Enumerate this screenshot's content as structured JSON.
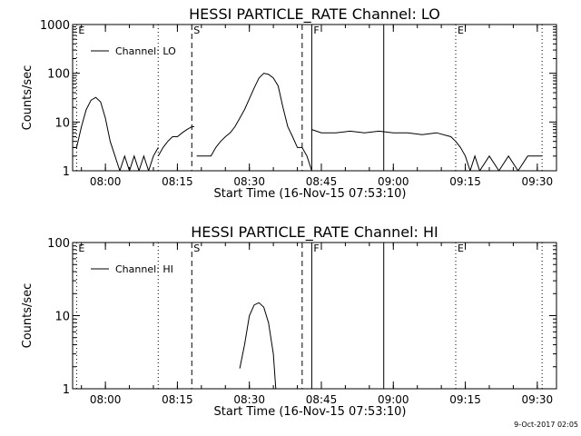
{
  "footer": {
    "timestamp": "9-Oct-2017 02:05"
  },
  "chart_data": [
    {
      "type": "line",
      "title": "HESSI PARTICLE_RATE Channel: LO",
      "xlabel": "Start Time (16-Nov-15 07:53:10)",
      "ylabel": "Counts/sec",
      "y_scale": "log",
      "ylim": [
        1,
        1000
      ],
      "y_ticks": [
        {
          "value": 1,
          "label": "1"
        },
        {
          "value": 10,
          "label": "10"
        },
        {
          "value": 100,
          "label": "100"
        },
        {
          "value": 1000,
          "label": "1000"
        }
      ],
      "xlim": [
        "07:53:10",
        "09:34:00"
      ],
      "x_ticks": [
        {
          "time": "08:00",
          "label": "08:00"
        },
        {
          "time": "08:15",
          "label": "08:15"
        },
        {
          "time": "08:30",
          "label": "08:30"
        },
        {
          "time": "08:45",
          "label": "08:45"
        },
        {
          "time": "09:00",
          "label": "09:00"
        },
        {
          "time": "09:15",
          "label": "09:15"
        },
        {
          "time": "09:30",
          "label": "09:30"
        }
      ],
      "legend": {
        "position": "top-left",
        "entries": [
          "Channel: LO"
        ]
      },
      "markers": [
        {
          "time": "07:54:00",
          "style": "dotted",
          "label": "E"
        },
        {
          "time": "08:11:00",
          "style": "dotted",
          "label": ""
        },
        {
          "time": "08:18:00",
          "style": "dashed",
          "label": "S"
        },
        {
          "time": "08:41:00",
          "style": "dashed",
          "label": ""
        },
        {
          "time": "08:43:00",
          "style": "solid",
          "label": "F"
        },
        {
          "time": "08:58:00",
          "style": "solid",
          "label": ""
        },
        {
          "time": "09:13:00",
          "style": "dotted",
          "label": "E"
        },
        {
          "time": "09:31:00",
          "style": "dotted",
          "label": ""
        }
      ],
      "series": [
        {
          "name": "Channel: LO",
          "segments": [
            {
              "x": [
                "07:53:10",
                "07:54:00",
                "07:55:00",
                "07:56:00",
                "07:57:00",
                "07:58:00",
                "07:59:00",
                "08:00:00",
                "08:01:00",
                "08:02:00",
                "08:03:00",
                "08:04:00",
                "08:05:00",
                "08:06:00",
                "08:07:00",
                "08:08:00",
                "08:09:00",
                "08:10:00",
                "08:11:00"
              ],
              "y": [
                3,
                3,
                8,
                18,
                28,
                32,
                26,
                12,
                4,
                2,
                1,
                2,
                1,
                2,
                1,
                2,
                1,
                2,
                3
              ]
            },
            {
              "x": [
                "08:11:00",
                "08:12:00",
                "08:13:00",
                "08:14:00",
                "08:15:00",
                "08:16:00",
                "08:17:00",
                "08:18:00",
                "08:18:30"
              ],
              "y": [
                2,
                3,
                4,
                5,
                5,
                6,
                7,
                8,
                8
              ]
            },
            {
              "x": [
                "08:19:00",
                "08:20:00",
                "08:21:00",
                "08:22:00",
                "08:23:00",
                "08:24:00",
                "08:25:00",
                "08:26:00",
                "08:27:00",
                "08:28:00",
                "08:29:00",
                "08:30:00",
                "08:31:00",
                "08:32:00",
                "08:33:00",
                "08:34:00",
                "08:35:00",
                "08:36:00",
                "08:37:00",
                "08:38:00",
                "08:39:00",
                "08:40:00",
                "08:41:00",
                "08:42:00",
                "08:43:00"
              ],
              "y": [
                2,
                2,
                2,
                2,
                3,
                4,
                5,
                6,
                8,
                12,
                18,
                30,
                50,
                80,
                100,
                95,
                80,
                55,
                20,
                8,
                5,
                3,
                3,
                2,
                1
              ]
            },
            {
              "x": [
                "08:43:00",
                "08:45:00",
                "08:48:00",
                "08:51:00",
                "08:54:00",
                "08:57:00",
                "09:00:00",
                "09:03:00",
                "09:06:00",
                "09:09:00",
                "09:12:00",
                "09:13:00",
                "09:14:00",
                "09:15:00",
                "09:16:00",
                "09:17:00",
                "09:18:00",
                "09:20:00",
                "09:22:00",
                "09:24:00",
                "09:26:00",
                "09:28:00",
                "09:30:00",
                "09:31:00"
              ],
              "y": [
                7,
                6,
                6,
                6.5,
                6,
                6.5,
                6,
                6,
                5.5,
                6,
                5,
                4,
                3,
                2,
                1,
                2,
                1,
                2,
                1,
                2,
                1,
                2,
                2,
                2
              ]
            }
          ]
        }
      ]
    },
    {
      "type": "line",
      "title": "HESSI PARTICLE_RATE Channel: HI",
      "xlabel": "Start Time (16-Nov-15 07:53:10)",
      "ylabel": "Counts/sec",
      "y_scale": "log",
      "ylim": [
        1,
        100
      ],
      "y_ticks": [
        {
          "value": 1,
          "label": "1"
        },
        {
          "value": 10,
          "label": "10"
        },
        {
          "value": 100,
          "label": "100"
        }
      ],
      "xlim": [
        "07:53:10",
        "09:34:00"
      ],
      "x_ticks": [
        {
          "time": "08:00",
          "label": "08:00"
        },
        {
          "time": "08:15",
          "label": "08:15"
        },
        {
          "time": "08:30",
          "label": "08:30"
        },
        {
          "time": "08:45",
          "label": "08:45"
        },
        {
          "time": "09:00",
          "label": "09:00"
        },
        {
          "time": "09:15",
          "label": "09:15"
        },
        {
          "time": "09:30",
          "label": "09:30"
        }
      ],
      "legend": {
        "position": "top-left",
        "entries": [
          "Channel: HI"
        ]
      },
      "markers": [
        {
          "time": "07:54:00",
          "style": "dotted",
          "label": "E"
        },
        {
          "time": "08:11:00",
          "style": "dotted",
          "label": ""
        },
        {
          "time": "08:18:00",
          "style": "dashed",
          "label": "S"
        },
        {
          "time": "08:41:00",
          "style": "dashed",
          "label": ""
        },
        {
          "time": "08:43:00",
          "style": "solid",
          "label": "F"
        },
        {
          "time": "08:58:00",
          "style": "solid",
          "label": ""
        },
        {
          "time": "09:13:00",
          "style": "dotted",
          "label": "E"
        },
        {
          "time": "09:31:00",
          "style": "dotted",
          "label": ""
        }
      ],
      "series": [
        {
          "name": "Channel: HI",
          "segments": [
            {
              "x": [
                "08:28:00",
                "08:29:00",
                "08:30:00",
                "08:31:00",
                "08:32:00",
                "08:33:00",
                "08:34:00",
                "08:35:00",
                "08:35:30"
              ],
              "y": [
                1.9,
                4,
                10,
                14,
                15,
                13,
                8,
                3,
                1
              ]
            }
          ]
        }
      ]
    }
  ]
}
